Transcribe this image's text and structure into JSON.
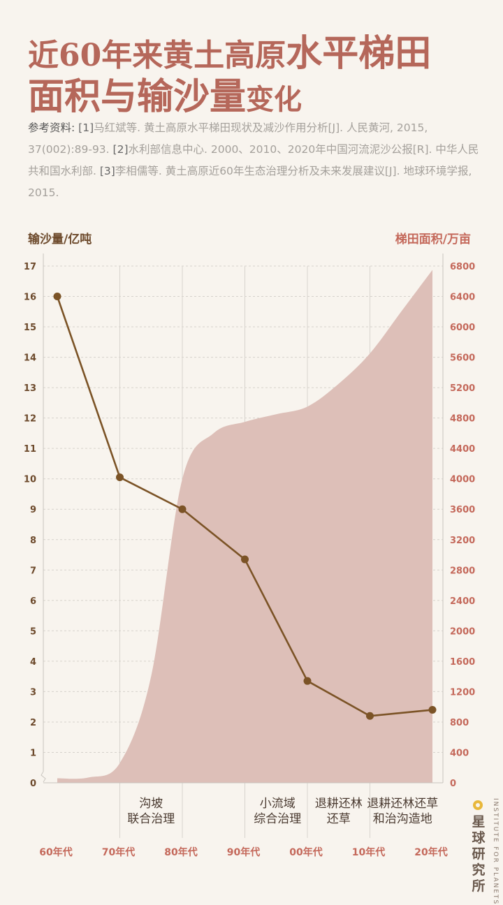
{
  "title": {
    "line1_a": "近60年来黄土高原",
    "line1_b": "水平梯田",
    "line2_a": "面积与输沙量",
    "line2_b": "变化"
  },
  "references": {
    "label": "参考资料:",
    "items": [
      {
        "num": "[1]",
        "text": "马红斌等. 黄土高原水平梯田现状及减沙作用分析[J]. 人民黄河, 2015, 37(002):89-93."
      },
      {
        "num": "[2]",
        "text": "水利部信息中心. 2000、2010、2020年中国河流泥沙公报[R]. 中华人民共和国水利部."
      },
      {
        "num": "[3]",
        "text": "李相儒等. 黄土高原近60年生态治理分析及未来发展建议[J]. 地球环境学报, 2015."
      }
    ]
  },
  "chart_data": {
    "type": "line+area",
    "left_axis_label": "输沙量/亿吨",
    "right_axis_label": "梯田面积/万亩",
    "categories": [
      "60年代",
      "70年代",
      "80年代",
      "90年代",
      "00年代",
      "10年代",
      "20年代"
    ],
    "left_ticks": [
      "0",
      "1",
      "2",
      "3",
      "4",
      "5",
      "6",
      "7",
      "8",
      "9",
      "10",
      "11",
      "12",
      "13",
      "14",
      "15",
      "16",
      "17"
    ],
    "right_ticks": [
      "0",
      "400",
      "800",
      "1200",
      "1600",
      "2000",
      "2400",
      "2800",
      "3200",
      "3600",
      "4000",
      "4400",
      "4800",
      "5200",
      "5600",
      "6000",
      "6400",
      "6800"
    ],
    "ylim_left": [
      0,
      17
    ],
    "ylim_right": [
      0,
      6800
    ],
    "sediment_series": {
      "name": "输沙量",
      "unit": "亿吨",
      "values": [
        16.0,
        10.05,
        9.0,
        7.35,
        3.35,
        2.2,
        2.4
      ],
      "color": "#7b5326"
    },
    "terrace_area_series": {
      "name": "梯田面积",
      "unit": "万亩",
      "x": [
        0,
        0.5,
        1.0,
        1.5,
        2.0,
        2.5,
        3.0,
        3.5,
        4.0,
        4.5,
        5.0,
        5.5,
        6.0
      ],
      "values": [
        60,
        70,
        260,
        1400,
        4000,
        4600,
        4750,
        4850,
        4950,
        5250,
        5650,
        6200,
        6750
      ],
      "color": "#ddbfb8"
    },
    "periods": [
      {
        "line1": "沟坡",
        "line2": "联合治理"
      },
      {
        "line1": "小流域",
        "line2": "综合治理"
      },
      {
        "line1": "退耕还林",
        "line2": "还草"
      },
      {
        "line1": "退耕还林还草",
        "line2": "和治沟造地"
      }
    ],
    "grid": true
  },
  "brand": {
    "cn": "星球研究所",
    "en": "INSTITUTE FOR PLANETS",
    "dot_color": "#e8b73a"
  }
}
